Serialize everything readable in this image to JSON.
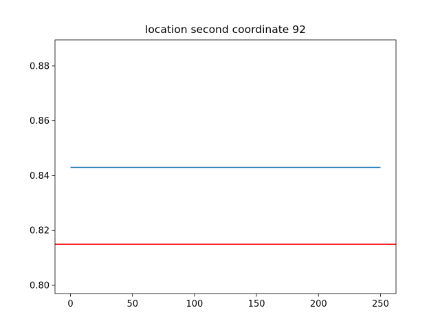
{
  "chart_data": {
    "type": "line",
    "title": "location second coordinate 92",
    "xlabel": "",
    "ylabel": "",
    "xlim": [
      -12.5,
      262.5
    ],
    "ylim": [
      0.797,
      0.8895
    ],
    "x_ticks": [
      0,
      50,
      100,
      150,
      200,
      250
    ],
    "y_ticks": [
      0.8,
      0.82,
      0.84,
      0.86,
      0.88
    ],
    "x_tick_labels": [
      "0",
      "50",
      "100",
      "150",
      "200",
      "250"
    ],
    "y_tick_labels": [
      "0.80",
      "0.82",
      "0.84",
      "0.86",
      "0.88"
    ],
    "grid": false,
    "series": [
      {
        "x": [
          0,
          250
        ],
        "values": [
          0.843,
          0.843
        ],
        "color": "#1f77b4"
      }
    ],
    "hlines": [
      {
        "y": 0.815,
        "color": "#ff0000"
      }
    ]
  }
}
